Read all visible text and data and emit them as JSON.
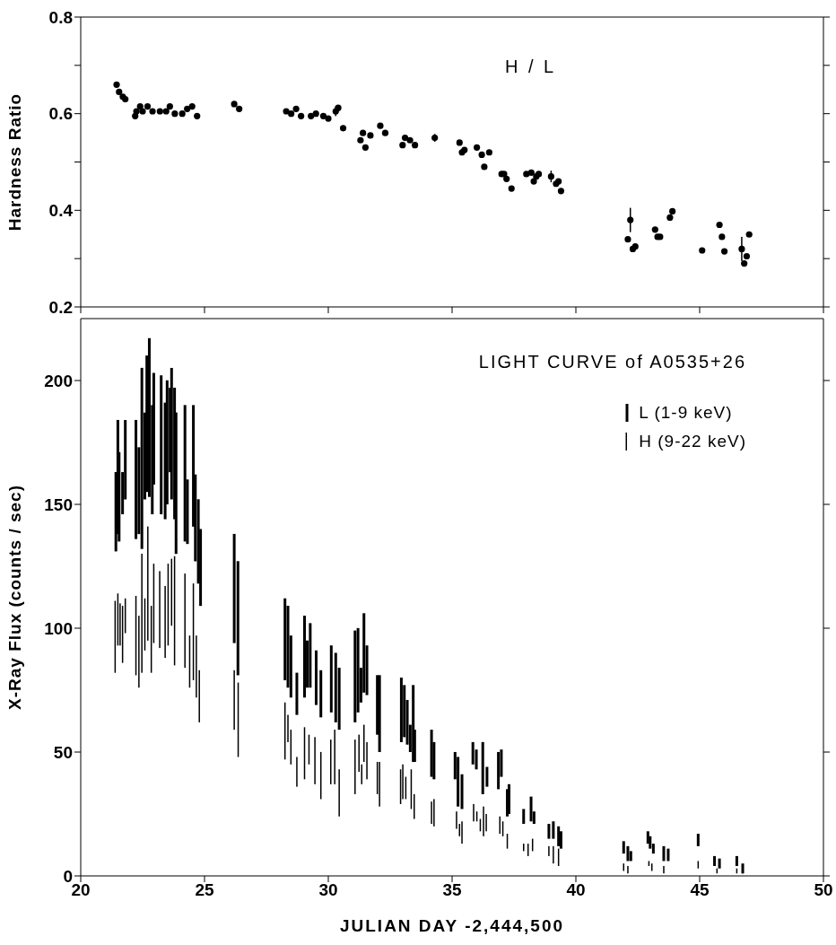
{
  "chart_data": [
    {
      "type": "scatter",
      "color": "#000000",
      "marker": "circle",
      "ylabel": "Hardness Ratio",
      "annotations": [
        "H / L"
      ],
      "xlim": [
        20,
        50
      ],
      "xticks": [
        20,
        25,
        30,
        35,
        40,
        45,
        50
      ],
      "tick_labels": "y",
      "ylim": [
        0.2,
        0.8
      ],
      "yticks": [
        0.2,
        {
          "value": 0.3,
          "label": null
        },
        0.4,
        {
          "value": 0.5,
          "label": null
        },
        0.6,
        {
          "value": 0.7,
          "label": null
        },
        0.8
      ],
      "x": [
        21.45,
        21.55,
        21.7,
        21.8,
        22.2,
        22.25,
        22.4,
        22.5,
        22.7,
        22.9,
        23.2,
        23.45,
        23.6,
        23.8,
        24.1,
        24.3,
        24.5,
        24.7,
        26.2,
        26.4,
        28.3,
        28.5,
        28.7,
        28.9,
        29.3,
        29.5,
        29.8,
        30.0,
        30.3,
        30.4,
        30.6,
        31.3,
        31.4,
        31.5,
        31.7,
        32.1,
        32.3,
        33.0,
        33.1,
        33.3,
        33.5,
        34.3,
        35.3,
        35.4,
        35.5,
        36.0,
        36.2,
        36.3,
        36.5,
        37.0,
        37.1,
        37.2,
        37.4,
        38.0,
        38.2,
        38.3,
        38.4,
        38.5,
        39.0,
        39.2,
        39.3,
        39.4,
        42.1,
        42.2,
        42.3,
        42.4,
        43.2,
        43.3,
        43.4,
        43.8,
        43.9,
        45.1,
        45.8,
        45.9,
        46.0,
        46.7,
        46.8,
        46.9,
        47.0
      ],
      "values": [
        0.66,
        0.645,
        0.635,
        0.63,
        0.595,
        0.605,
        0.615,
        0.605,
        0.615,
        0.605,
        0.605,
        0.605,
        0.615,
        0.6,
        0.6,
        0.61,
        0.615,
        0.595,
        0.62,
        0.61,
        0.605,
        0.6,
        0.61,
        0.595,
        0.595,
        0.6,
        0.595,
        0.59,
        0.605,
        0.612,
        0.57,
        0.545,
        0.56,
        0.53,
        0.555,
        0.575,
        0.56,
        0.535,
        0.55,
        0.545,
        0.535,
        0.55,
        0.54,
        0.52,
        0.525,
        0.53,
        0.515,
        0.49,
        0.52,
        0.475,
        0.475,
        0.465,
        0.445,
        0.475,
        0.478,
        0.46,
        0.47,
        0.475,
        0.47,
        0.455,
        0.46,
        0.44,
        0.34,
        0.38,
        0.32,
        0.325,
        0.36,
        0.345,
        0.345,
        0.385,
        0.398,
        0.317,
        0.37,
        0.345,
        0.315,
        0.32,
        0.29,
        0.305,
        0.35
      ],
      "errors": [
        null,
        null,
        null,
        null,
        null,
        null,
        null,
        null,
        null,
        null,
        null,
        null,
        null,
        null,
        null,
        null,
        null,
        null,
        null,
        null,
        null,
        null,
        null,
        null,
        null,
        null,
        null,
        null,
        0.01,
        null,
        null,
        null,
        null,
        null,
        null,
        null,
        null,
        null,
        null,
        null,
        null,
        0.008,
        null,
        null,
        null,
        null,
        null,
        null,
        null,
        null,
        null,
        null,
        null,
        null,
        null,
        null,
        null,
        null,
        0.012,
        null,
        null,
        null,
        null,
        0.025,
        null,
        null,
        null,
        null,
        null,
        null,
        null,
        null,
        null,
        null,
        null,
        0.025,
        null,
        null,
        null
      ]
    },
    {
      "type": "bar",
      "title": "LIGHT CURVE of A0535+26",
      "xlabel": "JULIAN DAY -2,444,500",
      "ylabel": "X-Ray Flux (counts / sec)",
      "legend": "top right",
      "xlim": [
        20,
        50
      ],
      "xticks": [
        20,
        25,
        30,
        35,
        40,
        45,
        50
      ],
      "ylim": [
        0,
        225
      ],
      "yticks": [
        0,
        50,
        100,
        150,
        200
      ],
      "series": [
        {
          "name": "L (1-9 keV)",
          "color": "#000000",
          "x": [
            21.42,
            21.5,
            21.55,
            21.69,
            21.8,
            22.23,
            22.35,
            22.47,
            22.59,
            22.67,
            22.77,
            22.89,
            22.95,
            23.25,
            23.41,
            23.49,
            23.61,
            23.67,
            23.79,
            23.85,
            24.21,
            24.31,
            24.55,
            24.63,
            24.75,
            24.84,
            26.2,
            26.35,
            28.25,
            28.37,
            28.49,
            28.73,
            29.04,
            29.15,
            29.27,
            29.51,
            29.7,
            30.12,
            30.3,
            30.44,
            31.08,
            31.2,
            31.32,
            31.44,
            31.56,
            31.98,
            32.07,
            32.95,
            33.07,
            33.19,
            33.31,
            33.43,
            33.49,
            34.17,
            34.27,
            35.12,
            35.24,
            35.4,
            35.84,
            35.98,
            36.24,
            36.41,
            36.87,
            36.99,
            37.23,
            37.3,
            37.89,
            38.19,
            38.31,
            38.91,
            39.09,
            39.3,
            39.4,
            41.93,
            42.1,
            42.22,
            42.91,
            43.0,
            43.13,
            43.55,
            43.73,
            44.94,
            45.6,
            45.8,
            46.5,
            46.74
          ],
          "base": [
            131,
            138,
            135,
            146,
            152,
            136,
            138,
            132,
            152,
            155,
            153,
            146,
            158,
            146,
            144,
            150,
            163,
            152,
            144,
            130,
            135,
            134,
            141,
            127,
            118,
            109,
            94,
            81,
            79,
            76,
            72,
            65,
            72,
            76,
            76,
            69,
            64,
            66,
            62,
            59,
            62,
            66,
            70,
            74,
            73,
            57,
            50,
            54,
            56,
            53,
            50,
            46,
            46,
            40,
            39,
            39,
            28,
            27,
            45,
            43,
            33,
            36,
            35,
            40,
            24,
            25,
            21,
            22,
            21,
            15,
            15,
            12,
            11,
            9,
            6,
            6,
            13,
            11,
            9,
            6,
            6,
            12,
            4,
            3,
            4,
            1
          ],
          "values": [
            32,
            46,
            36,
            17,
            32,
            48,
            35,
            73,
            35,
            55,
            64,
            44,
            45,
            56,
            47,
            50,
            34,
            53,
            53,
            57,
            55,
            26,
            49,
            35,
            34,
            31,
            44,
            46,
            33,
            33,
            25,
            17,
            33,
            19,
            26,
            22,
            19,
            27,
            28,
            25,
            37,
            34,
            14,
            32,
            20,
            24,
            31,
            26,
            21,
            18,
            11,
            31,
            13,
            19,
            15,
            11,
            20,
            14,
            9,
            8,
            21,
            8,
            15,
            11,
            11,
            12,
            6,
            10,
            5,
            6,
            7,
            8,
            7,
            5,
            6,
            4,
            5,
            5,
            4,
            6,
            5,
            5,
            4,
            4,
            4,
            4
          ]
        },
        {
          "name": "H (9-22 keV)",
          "color": "#000000",
          "x": [
            21.39,
            21.5,
            21.59,
            21.69,
            21.8,
            22.23,
            22.35,
            22.47,
            22.59,
            22.71,
            22.85,
            22.95,
            23.19,
            23.41,
            23.53,
            23.67,
            23.79,
            24.21,
            24.4,
            24.55,
            24.67,
            24.79,
            26.2,
            26.36,
            28.25,
            28.37,
            28.49,
            28.73,
            29.04,
            29.22,
            29.46,
            29.7,
            30.1,
            30.26,
            30.44,
            31.08,
            31.24,
            31.35,
            31.44,
            31.56,
            31.98,
            32.07,
            32.92,
            33.01,
            33.13,
            33.35,
            33.47,
            34.17,
            34.27,
            35.18,
            35.3,
            35.4,
            35.87,
            36.0,
            36.14,
            36.27,
            36.38,
            36.93,
            37.05,
            37.23,
            37.89,
            38.07,
            38.25,
            38.91,
            39.09,
            39.3,
            41.93,
            42.1,
            42.95,
            43.07,
            43.55,
            44.94,
            45.7,
            46.5,
            46.74
          ],
          "base": [
            82,
            93,
            93,
            86,
            98,
            81,
            76,
            82,
            91,
            95,
            82,
            94,
            92,
            88,
            93,
            101,
            85,
            84,
            76,
            79,
            72,
            62,
            59,
            48,
            47,
            54,
            45,
            36,
            39,
            45,
            37,
            31,
            37,
            37,
            24,
            33,
            42,
            37,
            46,
            39,
            33,
            28,
            29,
            31,
            31,
            27,
            23,
            21,
            20,
            19,
            16,
            13,
            22,
            22,
            18,
            16,
            18,
            17,
            16,
            11,
            10,
            8,
            10,
            8,
            5,
            4,
            2,
            1,
            4,
            2,
            1,
            3,
            1,
            1,
            1
          ],
          "values": [
            29,
            21,
            17,
            23,
            14,
            32,
            29,
            48,
            21,
            46,
            27,
            32,
            31,
            29,
            33,
            27,
            44,
            38,
            21,
            39,
            25,
            21,
            24,
            30,
            23,
            11,
            14,
            12,
            21,
            12,
            19,
            19,
            18,
            22,
            19,
            22,
            15,
            8,
            15,
            15,
            13,
            18,
            14,
            14,
            9,
            16,
            10,
            9,
            11,
            7,
            5,
            9,
            7,
            4,
            5,
            12,
            7,
            7,
            6,
            6,
            3,
            5,
            5,
            4,
            7,
            7,
            3,
            3,
            2,
            3,
            3,
            3,
            2,
            2,
            1
          ]
        }
      ]
    }
  ]
}
